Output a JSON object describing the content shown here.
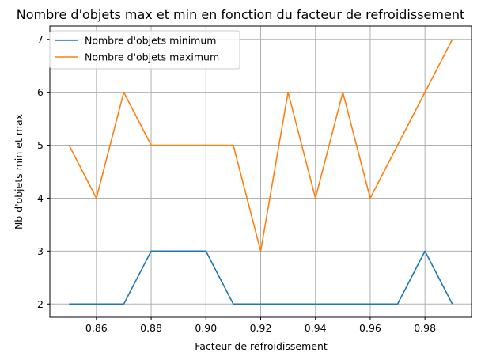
{
  "chart_data": {
    "type": "line",
    "title": "Nombre d'objets max et min en fonction du facteur de refroidissement",
    "xlabel": "Facteur de refroidissement",
    "ylabel": "Nb d'objets min et max",
    "x": [
      0.85,
      0.86,
      0.87,
      0.88,
      0.89,
      0.9,
      0.91,
      0.92,
      0.93,
      0.94,
      0.95,
      0.96,
      0.97,
      0.98,
      0.99
    ],
    "series": [
      {
        "name": "Nombre d'objets minimum",
        "color": "#1f77b4",
        "values": [
          2,
          2,
          2,
          3,
          3,
          3,
          2,
          2,
          2,
          2,
          2,
          2,
          2,
          3,
          2
        ]
      },
      {
        "name": "Nombre d'objets maximum",
        "color": "#ff7f0e",
        "values": [
          5,
          4,
          6,
          5,
          5,
          5,
          5,
          3,
          6,
          4,
          6,
          4,
          5,
          6,
          7
        ]
      }
    ],
    "xlim": [
      0.843,
      0.997
    ],
    "ylim": [
      1.75,
      7.25
    ],
    "xticks": [
      "0.86",
      "0.88",
      "0.90",
      "0.92",
      "0.94",
      "0.96",
      "0.98"
    ],
    "yticks": [
      "2",
      "3",
      "4",
      "5",
      "6",
      "7"
    ],
    "grid": true,
    "legend_position": "top-left"
  }
}
